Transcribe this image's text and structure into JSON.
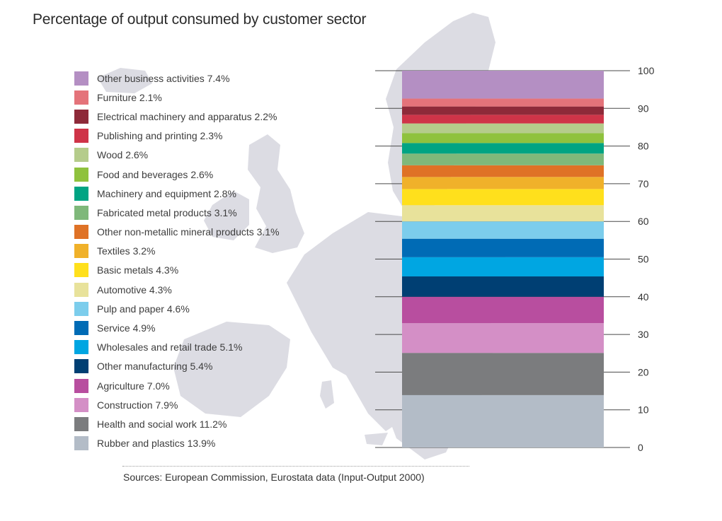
{
  "chart_data": {
    "type": "bar",
    "subtype": "stacked-100",
    "title": "Percentage of output consumed by customer sector",
    "xlabel": "",
    "ylabel": "",
    "ylim": [
      0,
      100
    ],
    "yticks": [
      0,
      10,
      20,
      30,
      40,
      50,
      60,
      70,
      80,
      90,
      100
    ],
    "legend_position": "left",
    "grid": false,
    "series": [
      {
        "name": "Rubber and plastics",
        "value": 13.9,
        "label": "Rubber and plastics 13.9%",
        "color": "#b3bcc7"
      },
      {
        "name": "Health and social work",
        "value": 11.2,
        "label": "Health and social work 11.2%",
        "color": "#7b7c7e"
      },
      {
        "name": "Construction",
        "value": 7.9,
        "label": "Construction 7.9%",
        "color": "#d48fc6"
      },
      {
        "name": "Agriculture",
        "value": 7.0,
        "label": "Agriculture 7.0%",
        "color": "#b84e9f"
      },
      {
        "name": "Other manufacturing",
        "value": 5.4,
        "label": "Other manufacturing 5.4%",
        "color": "#003f73"
      },
      {
        "name": "Wholesales and retail trade",
        "value": 5.1,
        "label": "Wholesales and retail trade 5.1%",
        "color": "#00a6e2"
      },
      {
        "name": "Service",
        "value": 4.9,
        "label": "Service 4.9%",
        "color": "#006bb5"
      },
      {
        "name": "Pulp and paper",
        "value": 4.6,
        "label": "Pulp and paper 4.6%",
        "color": "#7ccdec"
      },
      {
        "name": "Automotive",
        "value": 4.3,
        "label": "Automotive 4.3%",
        "color": "#e8e29b"
      },
      {
        "name": "Basic metals",
        "value": 4.3,
        "label": "Basic metals 4.3%",
        "color": "#ffe01c"
      },
      {
        "name": "Textiles",
        "value": 3.2,
        "label": "Textiles 3.2%",
        "color": "#f0b12a"
      },
      {
        "name": "Other non-metallic mineral products",
        "value": 3.1,
        "label": "Other non-metallic mineral products 3.1%",
        "color": "#df7226"
      },
      {
        "name": "Fabricated metal products",
        "value": 3.1,
        "label": "Fabricated metal products 3.1%",
        "color": "#7fb87a"
      },
      {
        "name": "Machinery and equipment",
        "value": 2.8,
        "label": "Machinery and equipment 2.8%",
        "color": "#00a483"
      },
      {
        "name": "Food and beverages",
        "value": 2.6,
        "label": "Food and beverages 2.6%",
        "color": "#8fc23d"
      },
      {
        "name": "Wood",
        "value": 2.6,
        "label": "Wood 2.6%",
        "color": "#b5cc8b"
      },
      {
        "name": "Publishing and printing",
        "value": 2.3,
        "label": "Publishing and printing 2.3%",
        "color": "#cf3448"
      },
      {
        "name": "Electrical machinery and apparatus",
        "value": 2.2,
        "label": "Electrical machinery and apparatus 2.2%",
        "color": "#8e2a39"
      },
      {
        "name": "Furniture",
        "value": 2.1,
        "label": "Furniture 2.1%",
        "color": "#e4737a"
      },
      {
        "name": "Other business activities",
        "value": 7.4,
        "label": "Other business activities 7.4%",
        "color": "#b48fc3"
      }
    ]
  },
  "source_text": "Sources: European Commission, Eurostata data (Input-Output 2000)",
  "colors": {
    "map": "#dcdce3",
    "axis": "#4a4a4a",
    "text": "#3d3d3d"
  }
}
